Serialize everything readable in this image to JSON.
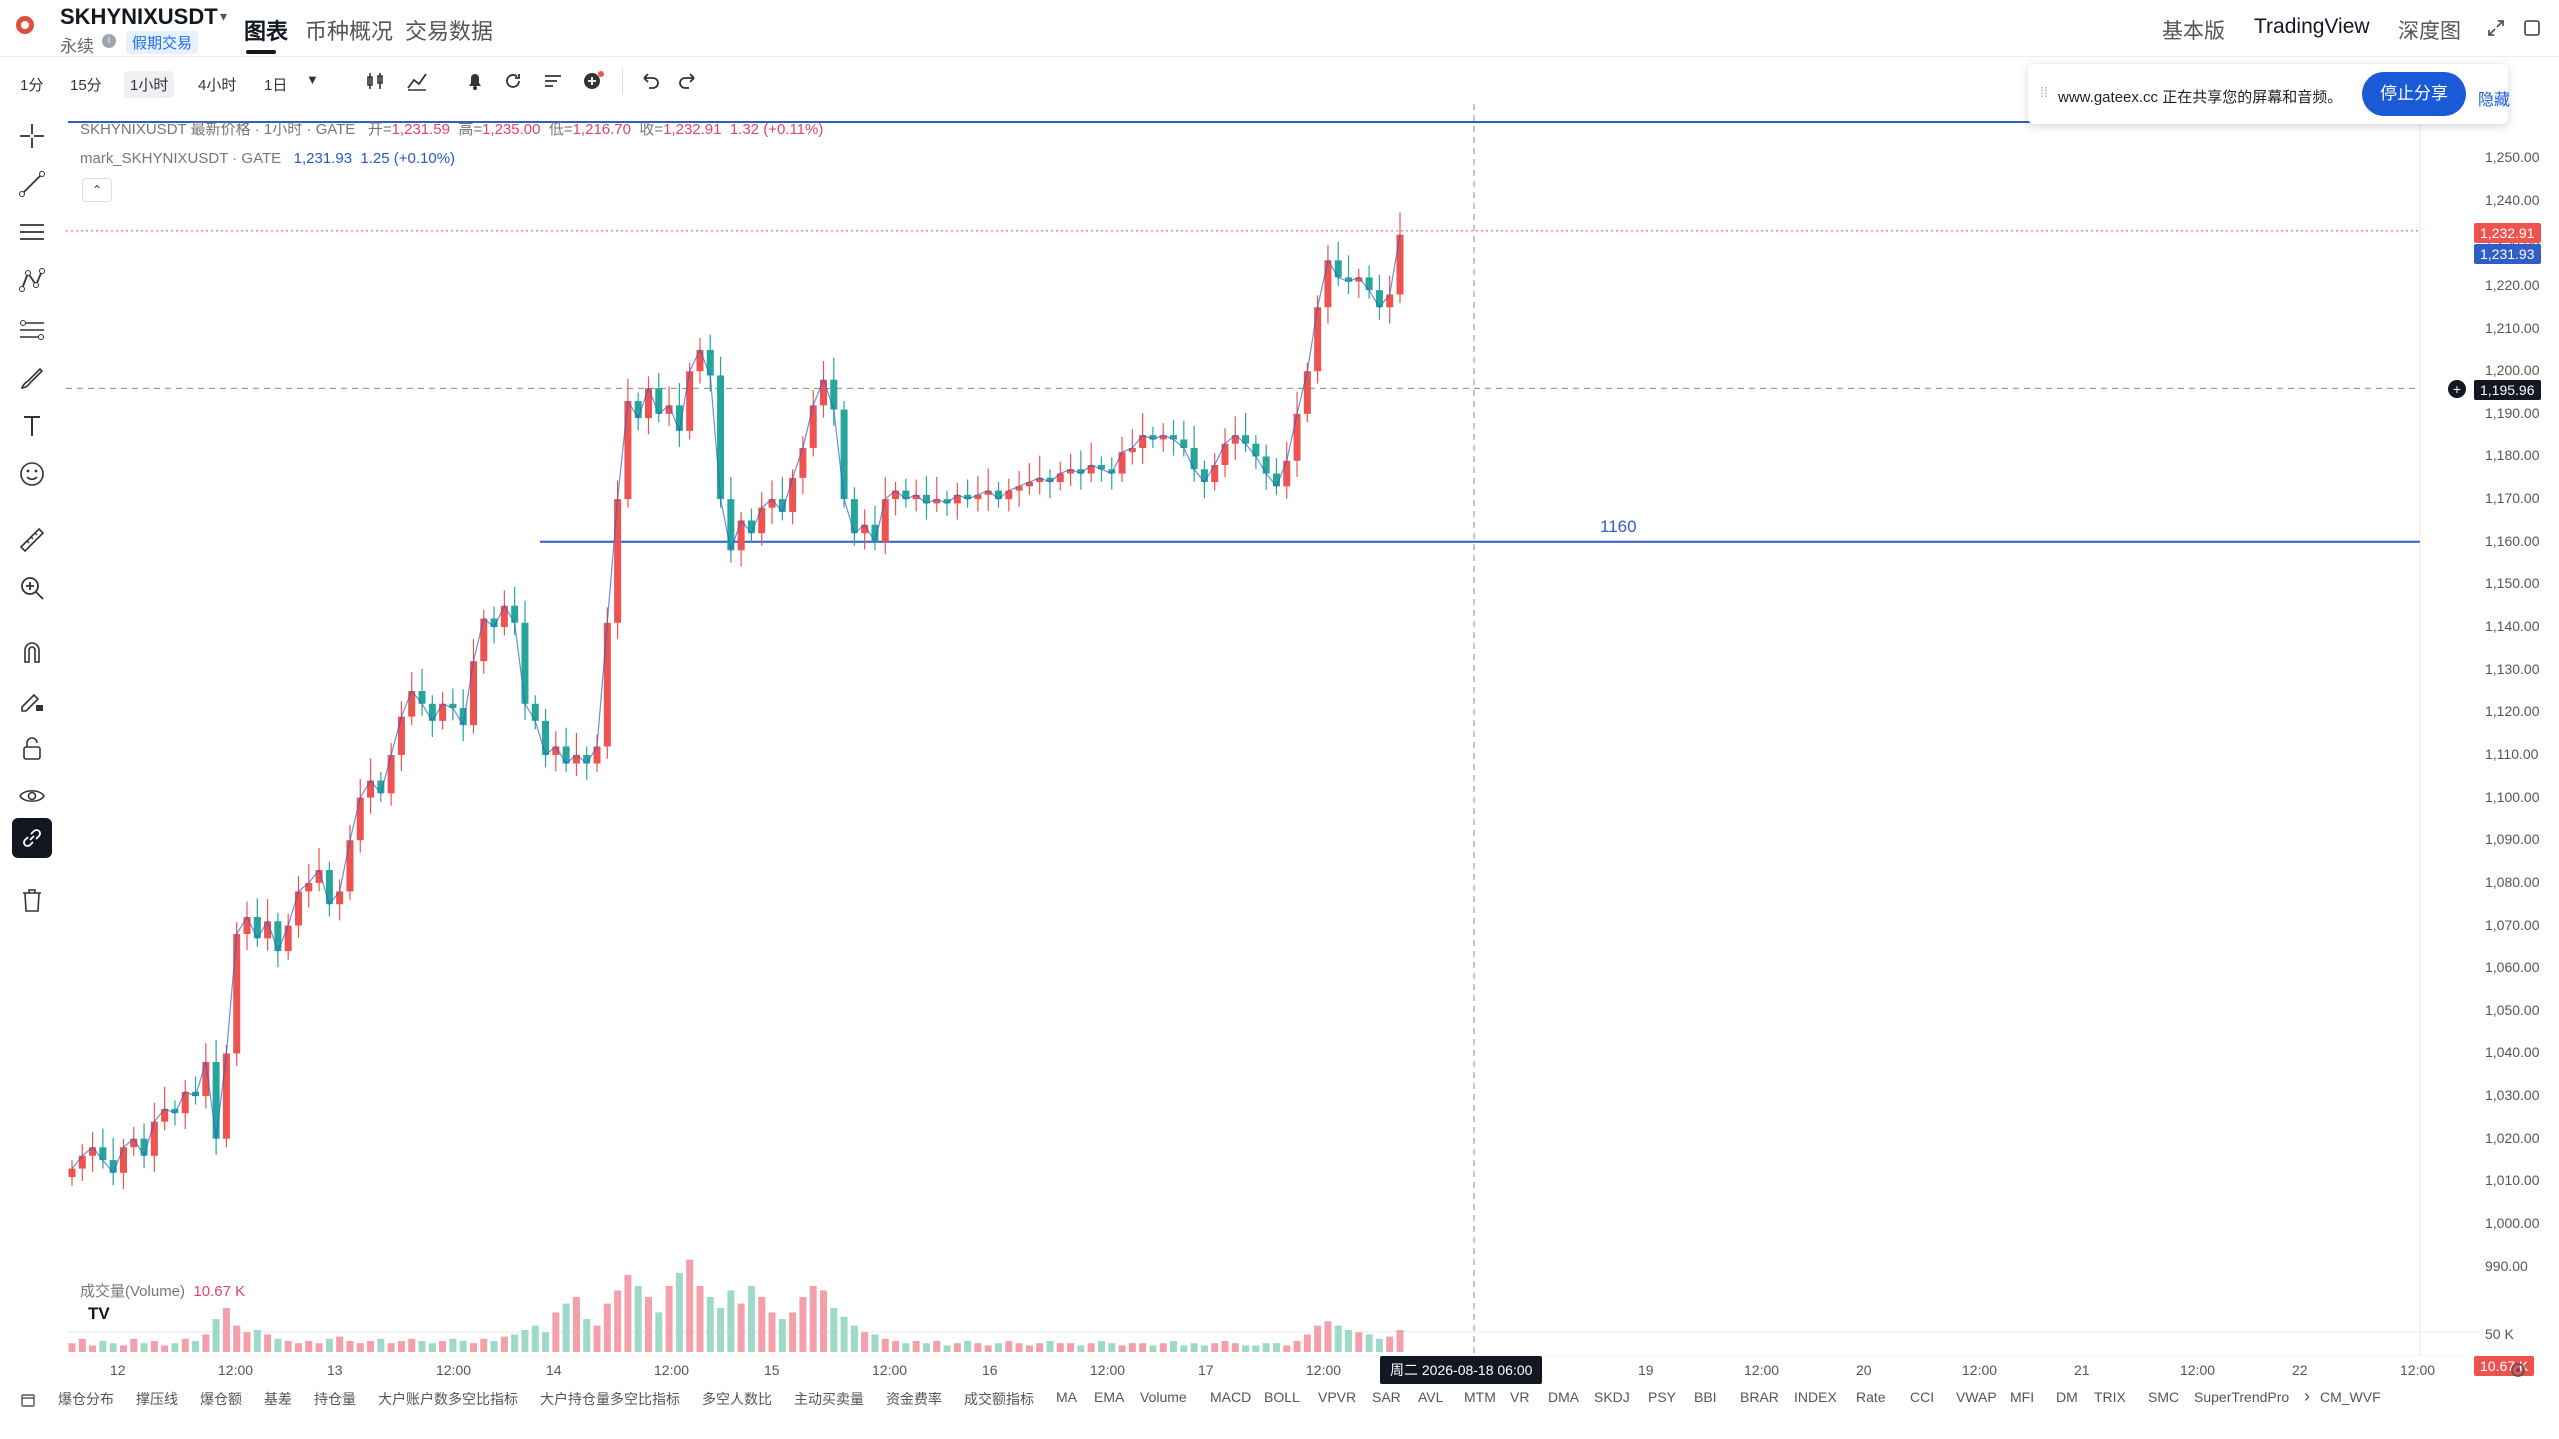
{
  "header": {
    "symbol": "SKHYNIXUSDT",
    "contract": "永续",
    "badge": "假期交易",
    "tabs": [
      {
        "label": "图表",
        "active": true
      },
      {
        "label": "币种概况",
        "active": false
      },
      {
        "label": "交易数据",
        "active": false
      }
    ],
    "right": {
      "basic": "基本版",
      "tradingview": "TradingView",
      "depth": "深度图"
    }
  },
  "toolbar": {
    "timeframes": [
      "1分",
      "15分",
      "1小时",
      "4小时",
      "1日"
    ],
    "active_timeframe": "1小时"
  },
  "legend": {
    "main_title": "SKHYNIXUSDT 最新价格 · 1小时 · GATE",
    "open_label": "开=",
    "open": "1,231.59",
    "high_label": "高=",
    "high": "1,235.00",
    "low_label": "低=",
    "low": "1,216.70",
    "close_label": "收=",
    "close": "1,232.91",
    "change": "1.32 (+0.11%)",
    "mark_title": "mark_SKHYNIXUSDT · GATE",
    "mark_value": "1,231.93",
    "mark_change": "1.25 (+0.10%)"
  },
  "share_banner": {
    "text": "www.gateex.cc 正在共享您的屏幕和音频。",
    "stop_label": "停止分享",
    "hide_label": "隐藏"
  },
  "chart_data": {
    "type": "candlestick",
    "price_ticks": [
      "1,250.00",
      "1,240.00",
      "1,230.00",
      "1,220.00",
      "1,210.00",
      "1,200.00",
      "1,190.00",
      "1,180.00",
      "1,170.00",
      "1,160.00",
      "1,150.00",
      "1,140.00",
      "1,130.00",
      "1,120.00",
      "1,110.00",
      "1,100.00",
      "1,090.00",
      "1,080.00",
      "1,070.00",
      "1,060.00",
      "1,050.00",
      "1,040.00",
      "1,030.00",
      "1,020.00",
      "1,010.00",
      "1,000.00",
      "990.00"
    ],
    "ylim": [
      988,
      1255
    ],
    "time_ticks": [
      "12",
      "12:00",
      "13",
      "12:00",
      "14",
      "12:00",
      "15",
      "12:00",
      "16",
      "12:00",
      "17",
      "12:00",
      "19",
      "12:00",
      "20",
      "12:00",
      "21",
      "12:00",
      "22",
      "12:00"
    ],
    "last_price": "1,232.91",
    "mark_price": "1,231.93",
    "crosshair_price": "1,195.96",
    "crosshair_time": "周二 2026-08-18   06:00",
    "horizontal_line": {
      "value": 1160,
      "label": "1160"
    },
    "top_line_value": 1250,
    "volume_label": "成交量(Volume)",
    "volume_value": "10.67 K",
    "volume_tick": "50 K",
    "close_path": [
      1013,
      1016,
      1018,
      1015,
      1012,
      1018,
      1020,
      1016,
      1024,
      1027,
      1026,
      1031,
      1030,
      1038,
      1020,
      1040,
      1068,
      1072,
      1067,
      1071,
      1064,
      1070,
      1078,
      1080,
      1083,
      1075,
      1078,
      1090,
      1100,
      1104,
      1101,
      1110,
      1119,
      1125,
      1122,
      1118,
      1122,
      1121,
      1117,
      1132,
      1142,
      1140,
      1145,
      1141,
      1122,
      1118,
      1110,
      1112,
      1108,
      1110,
      1108,
      1112,
      1141,
      1170,
      1193,
      1189,
      1196,
      1190,
      1192,
      1186,
      1200,
      1205,
      1199,
      1170,
      1158,
      1165,
      1162,
      1168,
      1170,
      1167,
      1175,
      1182,
      1192,
      1198,
      1191,
      1170,
      1162,
      1164,
      1160,
      1170,
      1172,
      1170,
      1171,
      1169,
      1170,
      1169,
      1171,
      1170,
      1171,
      1172,
      1170,
      1172,
      1173,
      1174,
      1175,
      1174,
      1176,
      1177,
      1176,
      1178,
      1177,
      1176,
      1181,
      1182,
      1185,
      1184,
      1185,
      1184,
      1182,
      1177,
      1174,
      1178,
      1183,
      1185,
      1183,
      1180,
      1176,
      1173,
      1179,
      1190,
      1200,
      1215,
      1226,
      1222,
      1221,
      1222,
      1219,
      1215,
      1218,
      1232
    ],
    "volume": [
      4,
      6,
      3,
      5,
      4,
      3,
      6,
      4,
      5,
      3,
      4,
      6,
      5,
      8,
      15,
      20,
      12,
      9,
      10,
      8,
      6,
      5,
      4,
      5,
      4,
      6,
      7,
      5,
      4,
      5,
      6,
      4,
      5,
      6,
      5,
      4,
      5,
      6,
      5,
      4,
      6,
      5,
      7,
      8,
      10,
      12,
      9,
      18,
      22,
      25,
      15,
      12,
      22,
      28,
      35,
      30,
      25,
      18,
      30,
      36,
      42,
      30,
      25,
      20,
      28,
      22,
      30,
      25,
      18,
      15,
      18,
      25,
      30,
      28,
      20,
      16,
      12,
      9,
      8,
      6,
      5,
      4,
      5,
      4,
      5,
      3,
      4,
      5,
      4,
      3,
      4,
      5,
      4,
      3,
      4,
      5,
      4,
      4,
      3,
      4,
      5,
      4,
      3,
      4,
      4,
      3,
      4,
      5,
      3,
      4,
      3,
      4,
      5,
      4,
      3,
      3,
      4,
      4,
      3,
      5,
      8,
      12,
      14,
      12,
      10,
      9,
      8,
      6,
      7,
      10
    ]
  },
  "indicators": [
    "爆仓分布",
    "撑压线",
    "爆仓额",
    "基差",
    "持仓量",
    "大户账户数多空比指标",
    "大户持仓量多空比指标",
    "多空人数比",
    "主动买卖量",
    "资金费率",
    "成交额指标",
    "MA",
    "EMA",
    "Volume",
    "MACD",
    "BOLL",
    "VPVR",
    "SAR",
    "AVL",
    "MTM",
    "VR",
    "DMA",
    "SKDJ",
    "PSY",
    "BBI",
    "BRAR",
    "INDEX",
    "Rate",
    "CCI",
    "VWAP",
    "MFI",
    "DM",
    "TRIX",
    "SMC",
    "SuperTrendPro",
    "CM_WVF"
  ],
  "colors": {
    "up": "#26a69a",
    "down": "#ef5350",
    "line": "#2f5ec9",
    "dark": "#131722"
  }
}
